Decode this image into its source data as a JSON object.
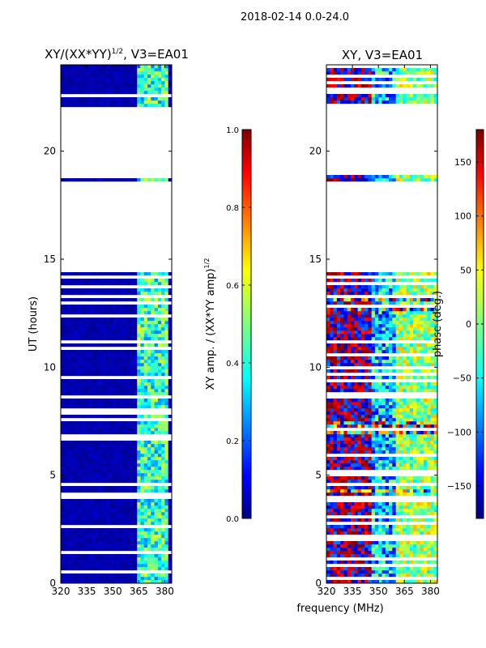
{
  "figure": {
    "suptitle": "2018-02-14 0.0-24.0",
    "xlabel": "frequency (MHz)",
    "ylabel": "UT (hours)"
  },
  "chart_data": [
    {
      "type": "heatmap",
      "title": "XY/(XX*YY)^1/2, V3=EA01",
      "title_main": "XY/(XX*YY)",
      "title_sup": "1/2",
      "title_tail": ", V3=EA01",
      "xlabel": "frequency (MHz)",
      "ylabel": "UT (hours)",
      "xlim": [
        320,
        384
      ],
      "ylim": [
        0,
        24
      ],
      "xticks": [
        "320",
        "335",
        "350",
        "365",
        "380"
      ],
      "yticks": [
        "0",
        "5",
        "10",
        "15",
        "20"
      ],
      "colormap": "jet",
      "colorbar": {
        "label": "XY amp. / (XX*YY amp)^1/2",
        "label_main": "XY amp. / (XX*YY amp)",
        "label_sup": "1/2",
        "range": [
          0.0,
          1.0
        ],
        "ticks": [
          "0.0",
          "0.2",
          "0.4",
          "0.6",
          "0.8",
          "1.0"
        ]
      },
      "data_gaps_hours": [
        [
          14.4,
          18.6
        ],
        [
          18.85,
          22.0
        ]
      ],
      "description_values": "amplitude mostly near 0 (dark blue) below 360 MHz; bright (0.4-0.6) streaks between 360 and 380 MHz"
    },
    {
      "type": "heatmap",
      "title": "XY, V3=EA01",
      "xlabel": "frequency (MHz)",
      "ylim": [
        0,
        24
      ],
      "xlim": [
        320,
        384
      ],
      "xticks": [
        "320",
        "335",
        "350",
        "365",
        "380"
      ],
      "yticks": [
        "0",
        "5",
        "10",
        "15",
        "20"
      ],
      "colormap": "jet",
      "colorbar": {
        "label": "phase (deg.)",
        "range": [
          -180,
          180
        ],
        "ticks": [
          "-150",
          "-100",
          "-50",
          "0",
          "50",
          "100",
          "150"
        ]
      },
      "data_gaps_hours": [
        [
          14.4,
          18.6
        ],
        [
          18.85,
          22.0
        ]
      ],
      "description_values": "phase varies across full -180 to 180 degree range"
    }
  ],
  "colors": {
    "jet": [
      "#00007f",
      "#0000ff",
      "#007fff",
      "#00ffff",
      "#7fff7f",
      "#ffff00",
      "#ff7f00",
      "#ff0000",
      "#7f0000"
    ]
  }
}
